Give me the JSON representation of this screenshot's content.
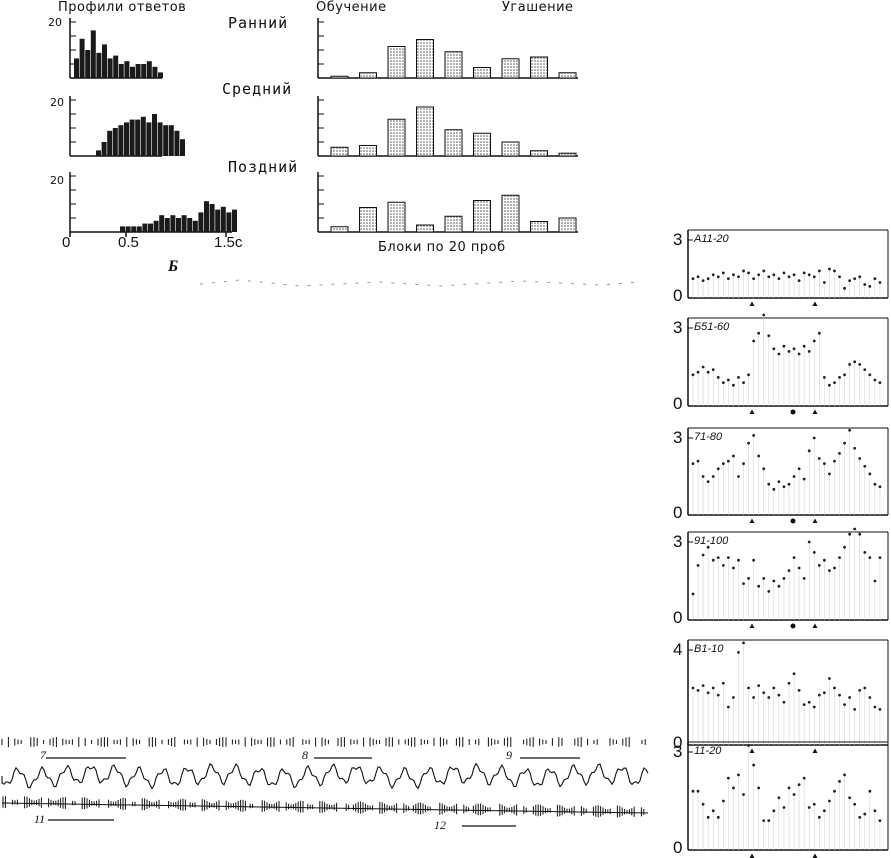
{
  "header": {
    "left_title": "Профили ответов",
    "mid_title": "Обучение",
    "right_title": "Угашение",
    "figure_letter": "Б",
    "x_caption": "Блоки по 20 проб"
  },
  "chart_data": [
    {
      "type": "bar",
      "group": "response-profiles",
      "xlabel": "с",
      "x_ticks": [
        "0",
        "0.5",
        "1.5с"
      ],
      "ylim": [
        0,
        20
      ],
      "y_tick_label": "20",
      "rows": [
        {
          "name": "Ранний",
          "values": [
            7,
            14,
            10,
            17,
            9,
            12,
            7,
            8,
            5,
            6,
            4,
            5,
            5,
            6,
            4,
            2
          ]
        },
        {
          "name": "Средний",
          "values": [
            2,
            5,
            9,
            10,
            11,
            12,
            13,
            13,
            14,
            12,
            15,
            12,
            11,
            11,
            9,
            6
          ]
        },
        {
          "name": "Поздний",
          "values": [
            2,
            2,
            2,
            2,
            3,
            3,
            4,
            6,
            5,
            6,
            5,
            6,
            5,
            4,
            7,
            11,
            10,
            8,
            9,
            7,
            8
          ]
        }
      ]
    },
    {
      "type": "bar",
      "group": "learning-extinction",
      "xlabel": "Блоки по 20 проб",
      "rows": [
        {
          "name": "Ранний",
          "values": [
            0.5,
            1.5,
            9,
            11,
            7.5,
            3,
            5.5,
            6,
            1.5
          ]
        },
        {
          "name": "Средний",
          "values": [
            2.5,
            3,
            10.5,
            14,
            7.5,
            6.5,
            4,
            1.5,
            0.8
          ]
        },
        {
          "name": "Поздний",
          "values": [
            1.5,
            7,
            8.5,
            2,
            4.5,
            9,
            10.5,
            3,
            4
          ]
        }
      ]
    },
    {
      "type": "scatter",
      "group": "block-scatter",
      "panels": [
        {
          "label": "A11-20",
          "y_top": "3",
          "y_bottom": "0",
          "ymax": 3,
          "values": [
            1.0,
            1.1,
            0.9,
            1.0,
            1.2,
            1.1,
            1.3,
            1.0,
            1.2,
            1.1,
            1.4,
            1.3,
            1.0,
            1.2,
            1.4,
            1.1,
            1.2,
            1.0,
            1.3,
            1.1,
            1.2,
            0.9,
            1.3,
            1.2,
            1.1,
            1.4,
            0.8,
            1.5,
            1.4,
            1.1,
            0.5,
            0.9,
            1.0,
            1.1,
            0.7,
            0.6,
            1.0,
            0.8
          ],
          "markers": [
            "triangle",
            "triangle"
          ]
        },
        {
          "label": "Б51-60",
          "y_top": "3",
          "y_bottom": "0",
          "ymax": 3,
          "values": [
            1.2,
            1.3,
            1.5,
            1.3,
            1.4,
            1.1,
            0.9,
            1.0,
            0.8,
            1.1,
            0.9,
            1.2,
            2.5,
            2.8,
            3.5,
            2.7,
            2.2,
            2.0,
            2.3,
            2.1,
            2.2,
            2.0,
            2.3,
            2.1,
            2.5,
            2.8,
            1.1,
            0.8,
            0.9,
            1.1,
            1.2,
            1.6,
            1.7,
            1.6,
            1.4,
            1.2,
            1.0,
            0.9
          ],
          "markers": [
            "triangle",
            "circle",
            "triangle"
          ]
        },
        {
          "label": "71-80",
          "y_top": "3",
          "y_bottom": "0",
          "ymax": 3,
          "values": [
            2.0,
            2.1,
            1.5,
            1.3,
            1.5,
            1.8,
            2.0,
            2.1,
            2.3,
            1.5,
            2.0,
            2.8,
            3.1,
            2.3,
            1.8,
            1.2,
            1.0,
            1.3,
            1.1,
            1.2,
            1.5,
            1.8,
            1.4,
            2.5,
            3.0,
            2.2,
            2.0,
            1.6,
            2.1,
            2.4,
            2.8,
            3.3,
            2.6,
            2.2,
            1.9,
            1.6,
            1.2,
            1.1
          ],
          "markers": [
            "triangle",
            "circle",
            "triangle"
          ]
        },
        {
          "label": "91-100",
          "y_top": "3",
          "y_bottom": "0",
          "ymax": 3,
          "values": [
            1.0,
            2.1,
            2.5,
            2.8,
            2.3,
            2.4,
            2.1,
            2.4,
            2.0,
            2.3,
            1.4,
            1.6,
            2.3,
            1.3,
            1.6,
            1.1,
            1.5,
            1.3,
            1.6,
            1.9,
            2.4,
            2.0,
            1.6,
            3.0,
            2.6,
            2.1,
            2.3,
            1.9,
            2.0,
            2.4,
            2.8,
            3.3,
            3.5,
            3.3,
            2.6,
            2.4,
            1.5,
            2.4
          ],
          "markers": [
            "triangle",
            "circle",
            "triangle"
          ]
        },
        {
          "label": "B1-10",
          "y_top": "4",
          "y_bottom": "0",
          "ymax": 4,
          "values": [
            2.4,
            2.3,
            2.5,
            2.2,
            2.4,
            2.1,
            2.6,
            1.6,
            2.0,
            3.9,
            4.3,
            2.4,
            2.0,
            2.5,
            2.2,
            2.0,
            2.4,
            2.1,
            1.8,
            2.6,
            3.0,
            2.3,
            1.7,
            1.8,
            1.6,
            2.1,
            2.2,
            2.8,
            2.4,
            2.1,
            1.7,
            2.0,
            1.5,
            2.3,
            2.4,
            2.0,
            1.6,
            1.5
          ],
          "markers": [
            "triangle",
            "triangle"
          ]
        },
        {
          "label": "11-20",
          "y_top": "3",
          "y_bottom": "0",
          "ymax": 3,
          "values": [
            1.8,
            1.8,
            1.4,
            1.0,
            1.2,
            1.0,
            1.5,
            2.2,
            1.9,
            2.3,
            1.7,
            3.2,
            2.6,
            1.9,
            0.9,
            0.9,
            1.2,
            1.6,
            1.3,
            1.9,
            1.7,
            2.0,
            2.2,
            1.3,
            1.4,
            1.0,
            1.2,
            1.5,
            1.8,
            2.1,
            2.3,
            1.6,
            1.4,
            1.0,
            1.1,
            1.8,
            1.2,
            0.9
          ],
          "markers": [
            "triangle",
            "triangle"
          ]
        }
      ]
    }
  ],
  "traces": {
    "labels": [
      "7",
      "8",
      "9",
      "11",
      "12"
    ]
  }
}
